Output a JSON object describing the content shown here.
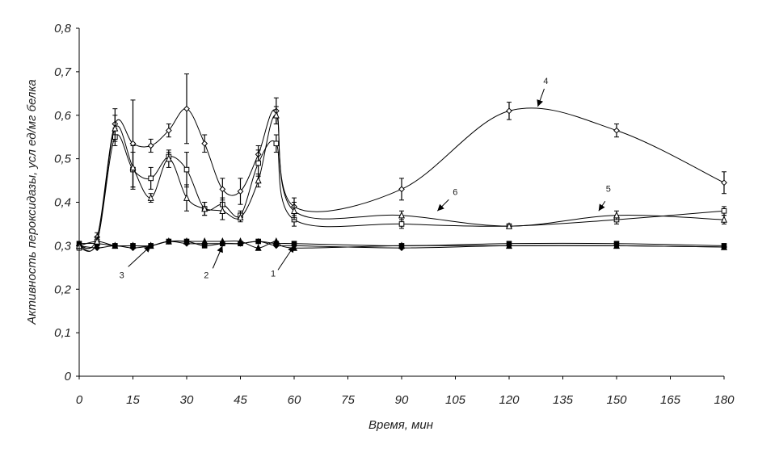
{
  "chart_data": {
    "type": "line",
    "title": "",
    "xlabel": "Время, мин",
    "ylabel": "Активность пероксидазы, усл ед/мг белка",
    "xlim": [
      0,
      180
    ],
    "ylim": [
      0,
      0.8
    ],
    "x_ticks": [
      0,
      15,
      30,
      45,
      60,
      75,
      90,
      105,
      120,
      135,
      150,
      165,
      180
    ],
    "y_ticks": [
      "0",
      "0,1",
      "0,2",
      "0,3",
      "0,4",
      "0,5",
      "0,6",
      "0,7",
      "0,8"
    ],
    "grid": false,
    "legend": "none",
    "x": [
      0,
      5,
      10,
      15,
      20,
      25,
      30,
      35,
      40,
      45,
      50,
      55,
      60,
      90,
      120,
      150,
      180
    ],
    "series": [
      {
        "label": "1",
        "marker": "triangle-filled",
        "values": [
          0.3,
          0.31,
          0.3,
          0.3,
          0.3,
          0.31,
          0.31,
          0.31,
          0.31,
          0.31,
          0.295,
          0.31,
          0.295,
          0.3,
          0.3,
          0.3,
          0.297
        ],
        "errors": []
      },
      {
        "label": "2",
        "marker": "square-filled",
        "values": [
          0.305,
          0.305,
          0.3,
          0.3,
          0.3,
          0.31,
          0.31,
          0.3,
          0.305,
          0.305,
          0.31,
          0.305,
          0.305,
          0.3,
          0.305,
          0.305,
          0.3
        ],
        "errors": []
      },
      {
        "label": "3",
        "marker": "diamond-filled",
        "values": [
          0.3,
          0.295,
          0.3,
          0.295,
          0.3,
          0.31,
          0.305,
          0.305,
          0.305,
          0.305,
          0.31,
          0.3,
          0.3,
          0.295,
          0.3,
          0.3,
          0.297
        ],
        "errors": []
      },
      {
        "label": "4",
        "marker": "diamond-open",
        "values": [
          0.3,
          0.32,
          0.58,
          0.535,
          0.53,
          0.565,
          0.615,
          0.535,
          0.43,
          0.425,
          0.51,
          0.61,
          0.39,
          0.43,
          0.61,
          0.565,
          0.445
        ],
        "errors": [
          0.005,
          0.01,
          0.035,
          0.1,
          0.015,
          0.015,
          0.08,
          0.02,
          0.025,
          0.03,
          0.02,
          0.03,
          0.02,
          0.025,
          0.02,
          0.015,
          0.025
        ]
      },
      {
        "label": "5",
        "marker": "square-open",
        "values": [
          0.295,
          0.31,
          0.55,
          0.475,
          0.455,
          0.505,
          0.475,
          0.385,
          0.395,
          0.37,
          0.49,
          0.535,
          0.36,
          0.35,
          0.345,
          0.36,
          0.38
        ],
        "errors": [
          0.005,
          0.01,
          0.02,
          0.04,
          0.025,
          0.01,
          0.04,
          0.015,
          0.015,
          0.01,
          0.03,
          0.02,
          0.015,
          0.01,
          0.005,
          0.01,
          0.01
        ]
      },
      {
        "label": "6",
        "marker": "triangle-open",
        "values": [
          0.3,
          0.31,
          0.57,
          0.48,
          0.41,
          0.5,
          0.41,
          0.385,
          0.38,
          0.365,
          0.45,
          0.6,
          0.38,
          0.37,
          0.345,
          0.37,
          0.36
        ],
        "errors": [
          0.005,
          0.01,
          0.03,
          0.05,
          0.01,
          0.02,
          0.03,
          0.015,
          0.02,
          0.01,
          0.015,
          0.02,
          0.02,
          0.01,
          0.005,
          0.01,
          0.01
        ]
      }
    ],
    "annotations": [
      {
        "text": "1",
        "at_x": 60,
        "at_y": 0.3
      },
      {
        "text": "2",
        "at_x": 40,
        "at_y": 0.3
      },
      {
        "text": "3",
        "at_x": 20,
        "at_y": 0.3
      },
      {
        "text": "4",
        "at_x": 128,
        "at_y": 0.62
      },
      {
        "text": "5",
        "at_x": 145,
        "at_y": 0.38
      },
      {
        "text": "6",
        "at_x": 100,
        "at_y": 0.38
      }
    ]
  }
}
